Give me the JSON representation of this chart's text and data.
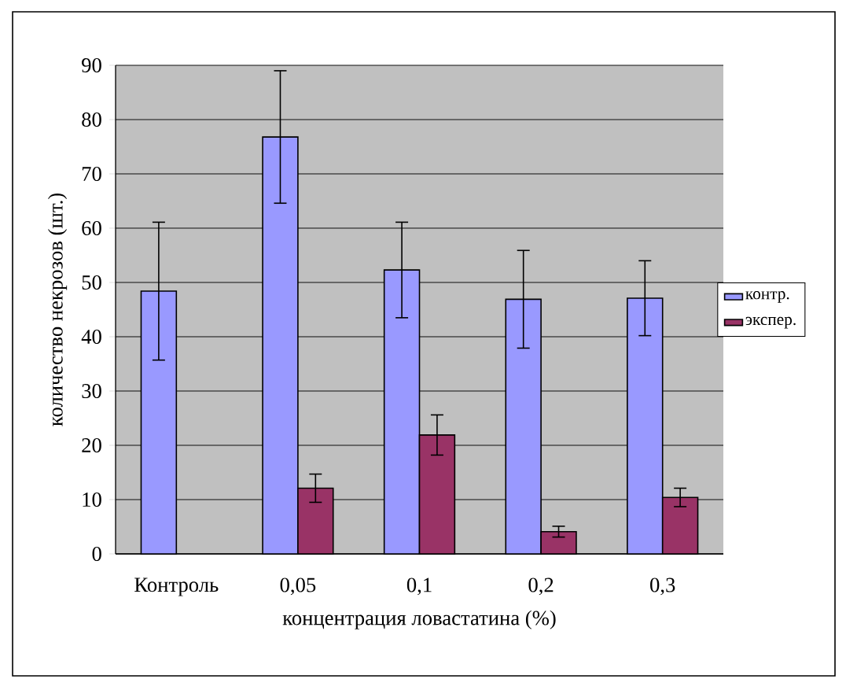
{
  "chart_data": {
    "type": "bar",
    "xlabel": "концентрация ловастатина (%)",
    "ylabel": "количество некрозов (шт.)",
    "categories": [
      "Контроль",
      "0,05",
      "0,1",
      "0,2",
      "0,3"
    ],
    "series": [
      {
        "name": "контр.",
        "color": "#9999ff",
        "values": [
          48.4,
          76.8,
          52.3,
          46.9,
          47.1
        ],
        "errors": [
          12.7,
          12.2,
          8.8,
          9.0,
          6.9
        ]
      },
      {
        "name": "экспер.",
        "color": "#993366",
        "values": [
          null,
          12.1,
          21.9,
          4.1,
          10.4
        ],
        "errors": [
          null,
          2.6,
          3.7,
          1.0,
          1.7
        ]
      }
    ],
    "ylim": [
      0,
      90
    ],
    "yticks": [
      0,
      10,
      20,
      30,
      40,
      50,
      60,
      70,
      80,
      90
    ],
    "grid": "y",
    "legend": "right"
  }
}
